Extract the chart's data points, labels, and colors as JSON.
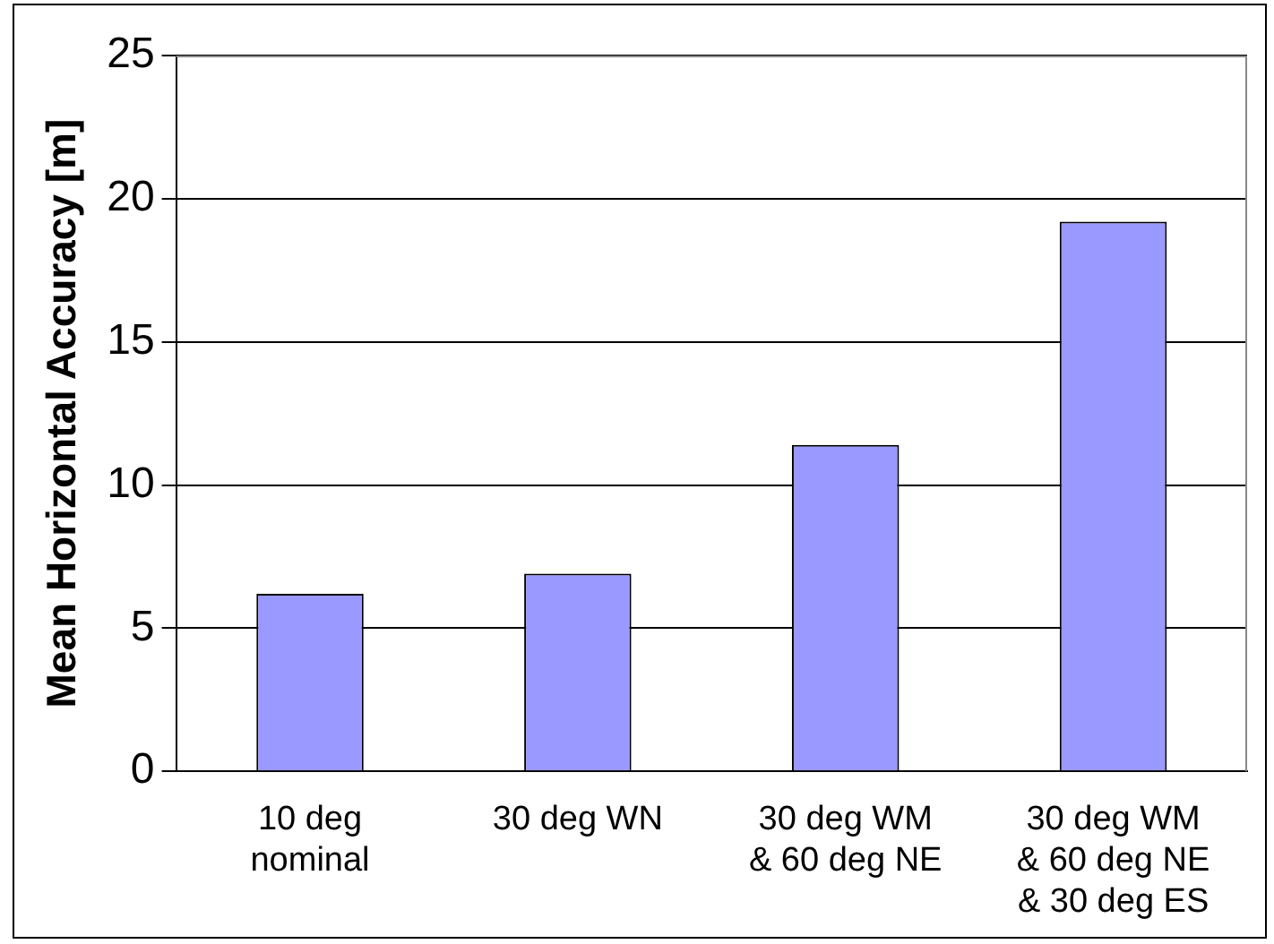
{
  "chart_data": {
    "type": "bar",
    "ylabel": "Mean Horizontal Accuracy [m]",
    "categories": [
      "10 deg\nnominal",
      "30 deg WN",
      "30 deg WM\n& 60 deg NE",
      "30 deg WM\n& 60 deg NE\n& 30 deg ES"
    ],
    "values": [
      6.2,
      6.9,
      11.4,
      19.2
    ],
    "color": "#9999ff",
    "ylim": [
      0,
      25
    ],
    "yticks": [
      0,
      5,
      10,
      15,
      20,
      25
    ],
    "grid": "y",
    "legend": false
  }
}
